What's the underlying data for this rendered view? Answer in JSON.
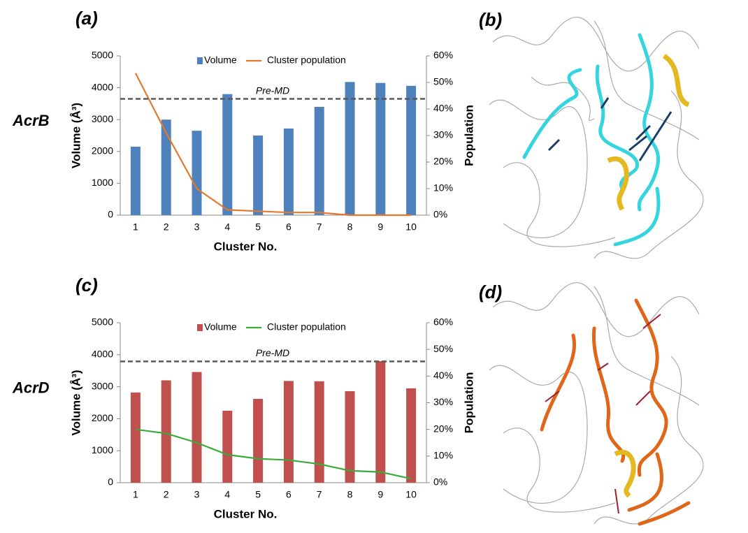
{
  "chart_data": [
    {
      "type": "bar",
      "title": "(a)",
      "row_label": "AcrB",
      "x_label": "Cluster No.",
      "y_label": "Volume (Å³)",
      "y2_label": "Population",
      "categories": [
        "1",
        "2",
        "3",
        "4",
        "5",
        "6",
        "7",
        "8",
        "9",
        "10"
      ],
      "series": [
        {
          "name": "Volume",
          "type": "bar",
          "color": "#4f81bd",
          "values": [
            2150,
            3000,
            2650,
            3800,
            2500,
            2720,
            3400,
            4180,
            4150,
            4060
          ]
        },
        {
          "name": "Cluster population",
          "type": "line",
          "axis": "y2",
          "color": "#e3792b",
          "values": [
            53.5,
            31,
            10,
            2,
            1.5,
            1,
            1,
            0,
            0,
            0
          ]
        }
      ],
      "ylim": [
        0,
        5000
      ],
      "yticks": [
        0,
        1000,
        2000,
        3000,
        4000,
        5000
      ],
      "y2lim": [
        0,
        60
      ],
      "y2ticks": [
        {
          "value": 0,
          "label": "0%"
        },
        {
          "value": 10,
          "label": "10%"
        },
        {
          "value": 20,
          "label": "20%"
        },
        {
          "value": 30,
          "label": "30%"
        },
        {
          "value": 40,
          "label": "40%"
        },
        {
          "value": 50,
          "label": "50%"
        },
        {
          "value": 60,
          "label": "60%"
        }
      ],
      "reference_line": {
        "value": 3650,
        "label": "Pre-MD",
        "color": "#595959"
      },
      "legend": "top"
    },
    {
      "type": "bar",
      "title": "(c)",
      "row_label": "AcrD",
      "x_label": "Cluster No.",
      "y_label": "Volume (Å³)",
      "y2_label": "Population",
      "categories": [
        "1",
        "2",
        "3",
        "4",
        "5",
        "6",
        "7",
        "8",
        "9",
        "10"
      ],
      "series": [
        {
          "name": "Volume",
          "type": "bar",
          "color": "#c0504d",
          "values": [
            2820,
            3200,
            3460,
            2250,
            2620,
            3180,
            3170,
            2860,
            3800,
            2950
          ]
        },
        {
          "name": "Cluster population",
          "type": "line",
          "axis": "y2",
          "color": "#3aaa3a",
          "values": [
            20,
            18.5,
            15,
            10.5,
            9,
            8.5,
            7,
            4.5,
            4,
            1.5
          ]
        }
      ],
      "ylim": [
        0,
        5000
      ],
      "yticks": [
        0,
        1000,
        2000,
        3000,
        4000,
        5000
      ],
      "y2lim": [
        0,
        60
      ],
      "y2ticks": [
        {
          "value": 0,
          "label": "0%"
        },
        {
          "value": 10,
          "label": "10%"
        },
        {
          "value": 20,
          "label": "20%"
        },
        {
          "value": 30,
          "label": "30%"
        },
        {
          "value": 40,
          "label": "40%"
        },
        {
          "value": 50,
          "label": "50%"
        },
        {
          "value": 60,
          "label": "60%"
        }
      ],
      "reference_line": {
        "value": 3790,
        "label": "Pre-MD",
        "color": "#595959"
      },
      "legend": "top"
    }
  ],
  "panels": [
    "(b)",
    "(d)"
  ]
}
